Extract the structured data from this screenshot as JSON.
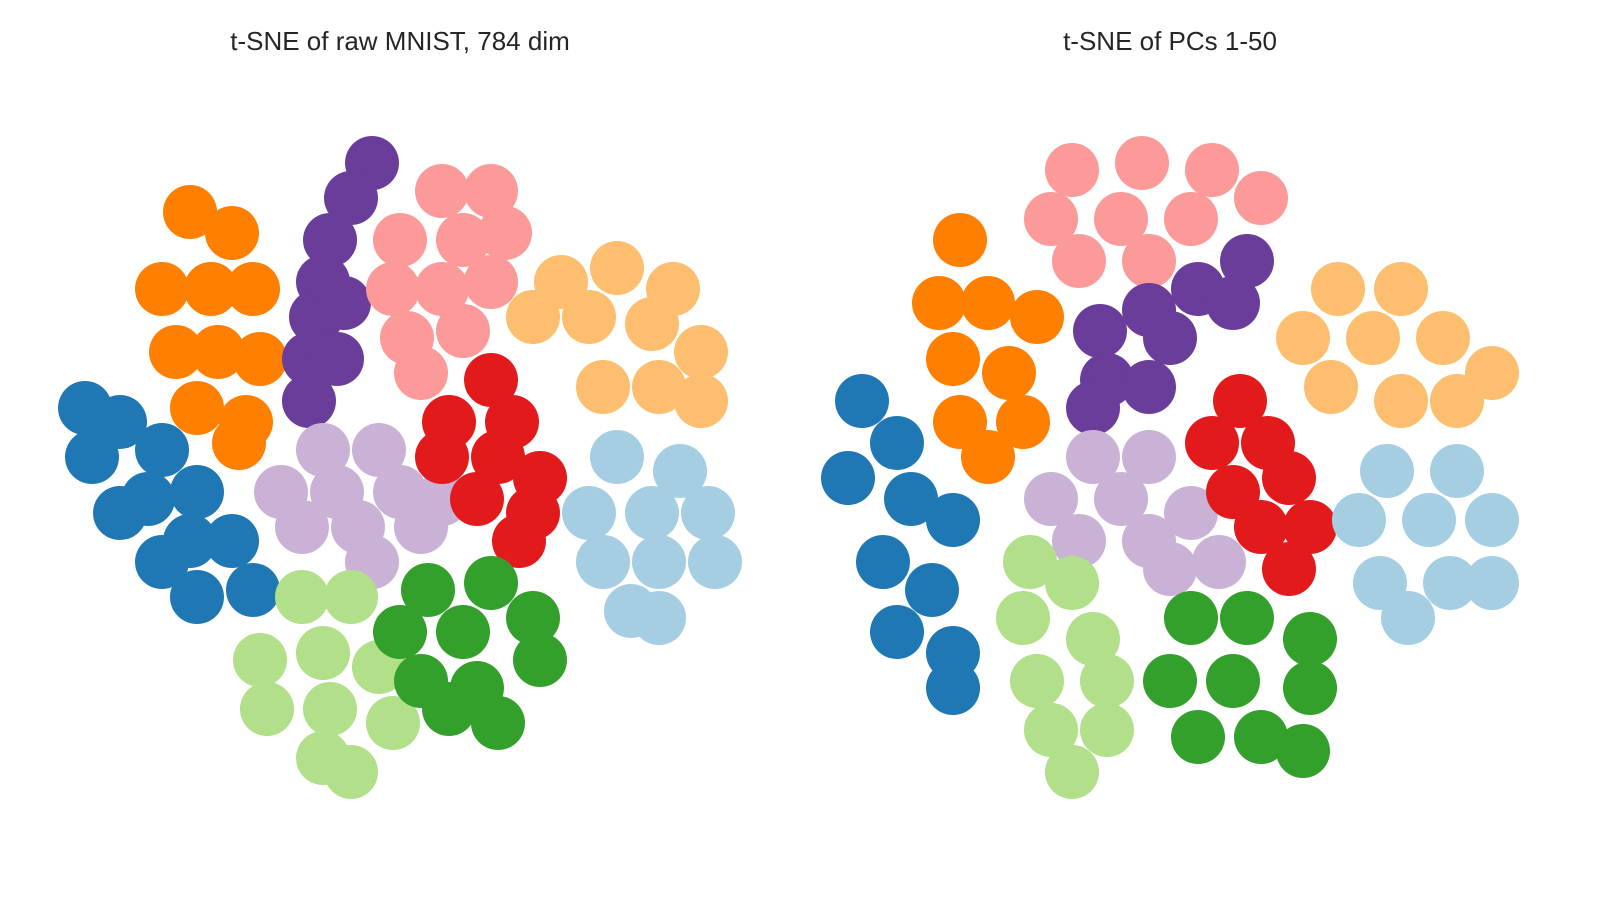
{
  "chart_data": [
    {
      "type": "scatter",
      "title": "t-SNE of raw MNIST, 784 dim",
      "xlim": [
        0,
        100
      ],
      "ylim": [
        0,
        100
      ],
      "series": [
        {
          "color": "#1f78b4",
          "x": [
            5,
            10,
            16,
            21,
            26,
            29,
            21,
            16,
            10,
            6,
            14,
            20
          ],
          "y": [
            56,
            54,
            50,
            44,
            37,
            30,
            29,
            34,
            41,
            49,
            43,
            37
          ]
        },
        {
          "color": "#ff7f00",
          "x": [
            20,
            26,
            16,
            23,
            29,
            18,
            24,
            30,
            21,
            28,
            27
          ],
          "y": [
            84,
            81,
            73,
            73,
            73,
            64,
            64,
            63,
            56,
            54,
            51
          ]
        },
        {
          "color": "#6a3d9a",
          "x": [
            46,
            43,
            40,
            39,
            38,
            37,
            37,
            42,
            41
          ],
          "y": [
            91,
            86,
            80,
            74,
            69,
            63,
            57,
            71,
            63
          ]
        },
        {
          "color": "#fb9a99",
          "x": [
            56,
            63,
            50,
            59,
            65,
            49,
            56,
            63,
            51,
            59,
            53
          ],
          "y": [
            87,
            87,
            80,
            80,
            81,
            73,
            73,
            74,
            66,
            67,
            61
          ]
        },
        {
          "color": "#fdbf6f",
          "x": [
            73,
            81,
            89,
            69,
            77,
            86,
            93,
            79,
            87,
            93
          ],
          "y": [
            74,
            76,
            73,
            69,
            69,
            68,
            64,
            59,
            59,
            57
          ]
        },
        {
          "color": "#cab2d6",
          "x": [
            39,
            47,
            33,
            41,
            50,
            56,
            36,
            44,
            53,
            46
          ],
          "y": [
            50,
            50,
            44,
            44,
            44,
            43,
            39,
            39,
            39,
            34
          ]
        },
        {
          "color": "#e31a1c",
          "x": [
            63,
            57,
            66,
            56,
            64,
            70,
            61,
            69,
            67
          ],
          "y": [
            60,
            54,
            54,
            49,
            49,
            46,
            43,
            41,
            37
          ]
        },
        {
          "color": "#a6cee3",
          "x": [
            81,
            90,
            77,
            86,
            94,
            79,
            87,
            95,
            83,
            87
          ],
          "y": [
            49,
            47,
            41,
            41,
            41,
            34,
            34,
            34,
            27,
            26
          ]
        },
        {
          "color": "#b2df8a",
          "x": [
            36,
            43,
            30,
            39,
            47,
            31,
            40,
            49,
            39,
            43
          ],
          "y": [
            29,
            29,
            20,
            21,
            19,
            13,
            13,
            11,
            6,
            4
          ]
        },
        {
          "color": "#33a02c",
          "x": [
            54,
            63,
            50,
            59,
            69,
            53,
            61,
            70,
            64,
            57
          ],
          "y": [
            30,
            31,
            24,
            24,
            26,
            17,
            16,
            20,
            11,
            13
          ]
        }
      ]
    },
    {
      "type": "scatter",
      "title": "t-SNE of PCs 1-50",
      "xlim": [
        0,
        100
      ],
      "ylim": [
        0,
        100
      ],
      "series": [
        {
          "color": "#1f78b4",
          "x": [
            6,
            11,
            4,
            13,
            19,
            9,
            16,
            11,
            19,
            19
          ],
          "y": [
            57,
            51,
            46,
            43,
            40,
            34,
            30,
            24,
            21,
            16
          ]
        },
        {
          "color": "#ff7f00",
          "x": [
            20,
            17,
            24,
            31,
            19,
            27,
            20,
            29,
            24
          ],
          "y": [
            80,
            71,
            71,
            69,
            63,
            61,
            54,
            54,
            49
          ]
        },
        {
          "color": "#fb9a99",
          "x": [
            36,
            46,
            56,
            63,
            33,
            43,
            53,
            37,
            47
          ],
          "y": [
            90,
            91,
            90,
            86,
            83,
            83,
            83,
            77,
            77
          ]
        },
        {
          "color": "#6a3d9a",
          "x": [
            61,
            54,
            47,
            40,
            59,
            50,
            41,
            39,
            47
          ],
          "y": [
            77,
            73,
            70,
            67,
            71,
            66,
            60,
            56,
            59
          ]
        },
        {
          "color": "#fdbf6f",
          "x": [
            74,
            83,
            69,
            79,
            89,
            96,
            73,
            83,
            91
          ],
          "y": [
            73,
            73,
            66,
            66,
            66,
            61,
            59,
            57,
            57
          ]
        },
        {
          "color": "#cab2d6",
          "x": [
            39,
            47,
            33,
            43,
            53,
            37,
            47,
            57,
            50
          ],
          "y": [
            49,
            49,
            43,
            43,
            41,
            37,
            37,
            34,
            33
          ]
        },
        {
          "color": "#e31a1c",
          "x": [
            60,
            56,
            64,
            59,
            67,
            63,
            70,
            67
          ],
          "y": [
            57,
            51,
            51,
            44,
            46,
            39,
            39,
            33
          ]
        },
        {
          "color": "#a6cee3",
          "x": [
            81,
            91,
            77,
            87,
            96,
            80,
            90,
            96,
            84
          ],
          "y": [
            47,
            47,
            40,
            40,
            40,
            31,
            31,
            31,
            26
          ]
        },
        {
          "color": "#b2df8a",
          "x": [
            30,
            36,
            29,
            39,
            31,
            41,
            33,
            41,
            36
          ],
          "y": [
            34,
            31,
            26,
            23,
            17,
            17,
            10,
            10,
            4
          ]
        },
        {
          "color": "#33a02c",
          "x": [
            53,
            61,
            70,
            50,
            59,
            70,
            54,
            63,
            69
          ],
          "y": [
            26,
            26,
            23,
            17,
            17,
            16,
            9,
            9,
            7
          ]
        }
      ]
    }
  ]
}
